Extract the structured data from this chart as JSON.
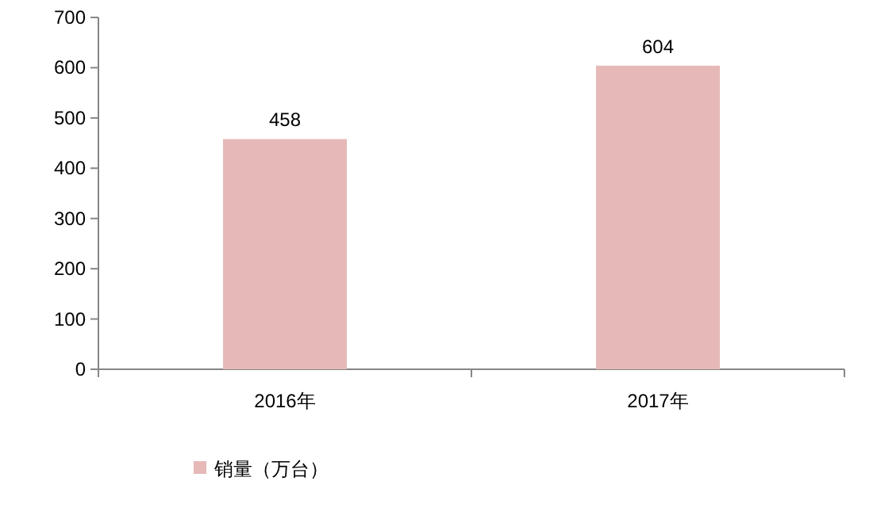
{
  "chart_data": {
    "type": "bar",
    "categories": [
      "2016年",
      "2017年"
    ],
    "series": [
      {
        "name": "销量（万台）",
        "color": "#e6b9b8",
        "values": [
          458,
          604
        ]
      }
    ],
    "ylim": [
      0,
      700
    ],
    "yticks": [
      0,
      100,
      200,
      300,
      400,
      500,
      600,
      700
    ],
    "data_labels": true,
    "legend": "bottom",
    "grid": false
  }
}
